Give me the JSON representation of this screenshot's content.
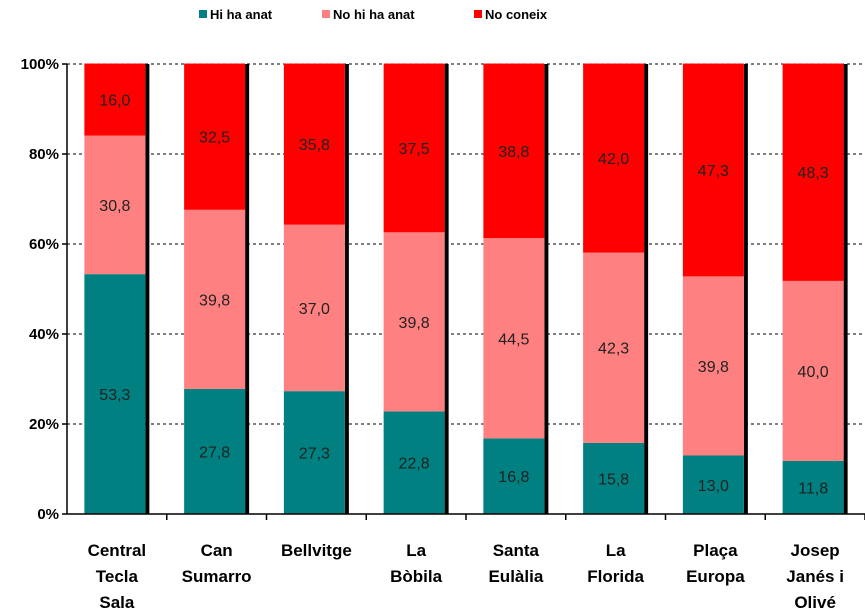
{
  "chart_data": {
    "type": "bar",
    "stacked": "percent",
    "categories": [
      [
        "Central",
        "Tecla",
        "Sala"
      ],
      [
        "Can",
        "Sumarro"
      ],
      [
        "Bellvitge"
      ],
      [
        "La",
        "Bòbila"
      ],
      [
        "Santa",
        "Eulàlia"
      ],
      [
        "La",
        "Florida"
      ],
      [
        "Plaça",
        "Europa"
      ],
      [
        "Josep",
        "Janés i",
        "Olivé"
      ]
    ],
    "series": [
      {
        "name": "Hi ha anat",
        "color": "#008080",
        "values": [
          53.3,
          27.8,
          27.3,
          22.8,
          16.8,
          15.8,
          13.0,
          11.8
        ],
        "labels": [
          "53,3",
          "27,8",
          "27,3",
          "22,8",
          "16,8",
          "15,8",
          "13,0",
          "11,8"
        ]
      },
      {
        "name": "No hi ha anat",
        "color": "#ff8080",
        "values": [
          30.8,
          39.8,
          37.0,
          39.8,
          44.5,
          42.3,
          39.8,
          40.0
        ],
        "labels": [
          "30,8",
          "39,8",
          "37,0",
          "39,8",
          "44,5",
          "42,3",
          "39,8",
          "40,0"
        ]
      },
      {
        "name": "No coneix",
        "color": "#ff0000",
        "values": [
          16.0,
          32.5,
          35.8,
          37.5,
          38.8,
          42.0,
          47.3,
          48.3
        ],
        "labels": [
          "16,0",
          "32,5",
          "35,8",
          "37,5",
          "38,8",
          "42,0",
          "47,3",
          "48,3"
        ]
      }
    ],
    "y_ticks": [
      "0%",
      "20%",
      "40%",
      "60%",
      "80%",
      "100%"
    ],
    "ylim": [
      0,
      100
    ],
    "grid": "horizontal dashed",
    "legend_position": "top"
  }
}
